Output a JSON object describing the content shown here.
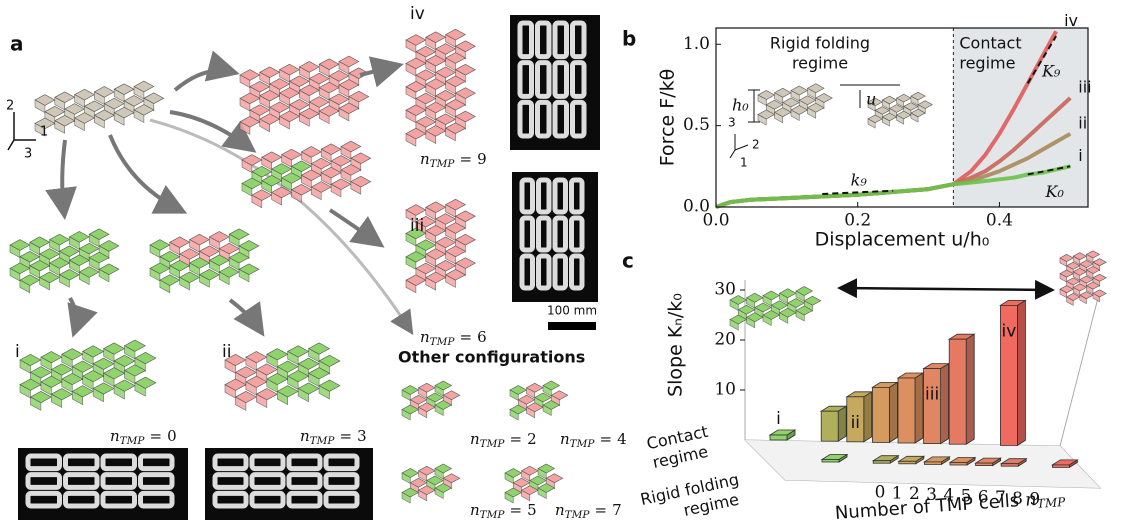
{
  "panel_a": {
    "label": "a",
    "axes": [
      "2",
      "1",
      "3"
    ],
    "n_tmp": {
      "symbol": "n",
      "subscript": "TMP",
      "relation": "="
    },
    "configurations": [
      {
        "roman": "i",
        "value": 0
      },
      {
        "roman": "ii",
        "value": 3
      },
      {
        "roman": "iii",
        "value": 6
      },
      {
        "roman": "iv",
        "value": 9
      }
    ],
    "other_configurations": {
      "title": "Other configurations",
      "values": [
        2,
        4,
        5,
        7
      ]
    },
    "scale_bar": "100 mm"
  },
  "chart_data": [
    {
      "type": "line",
      "panel_label": "b",
      "xlabel": "Displacement u/h₀",
      "ylabel": "Force F/kθ",
      "xlim": [
        0,
        0.525
      ],
      "ylim": [
        0,
        1.1
      ],
      "xticks": [
        {
          "value": 0,
          "label": "0.0"
        },
        0.2,
        0.4
      ],
      "yticks": [
        {
          "value": 0,
          "label": "0.0"
        },
        0.5,
        {
          "value": 1,
          "label": "1.0"
        }
      ],
      "x": [
        0,
        0.02,
        0.05,
        0.1,
        0.2,
        0.3,
        0.335,
        0.36,
        0.38,
        0.4,
        0.42,
        0.44,
        0.46,
        0.48,
        0.5
      ],
      "series": [
        {
          "name": "iv",
          "color": "#e05a5a",
          "values": [
            0,
            0.03,
            0.045,
            0.055,
            0.075,
            0.11,
            0.14,
            0.22,
            0.32,
            0.45,
            0.6,
            0.76,
            0.92,
            1.08,
            null
          ]
        },
        {
          "name": "iii",
          "color": "#c9645a",
          "values": [
            0,
            0.03,
            0.045,
            0.055,
            0.075,
            0.11,
            0.14,
            0.18,
            0.22,
            0.28,
            0.35,
            0.43,
            0.51,
            0.59,
            0.67
          ]
        },
        {
          "name": "ii",
          "color": "#a88a5a",
          "values": [
            0,
            0.03,
            0.045,
            0.055,
            0.075,
            0.11,
            0.14,
            0.16,
            0.19,
            0.22,
            0.26,
            0.3,
            0.35,
            0.4,
            0.45
          ]
        },
        {
          "name": "i",
          "color": "#6cc24a",
          "values": [
            0,
            0.03,
            0.045,
            0.055,
            0.075,
            0.11,
            0.14,
            0.15,
            0.16,
            0.17,
            0.18,
            0.2,
            0.21,
            0.23,
            0.25
          ]
        }
      ],
      "regions": [
        {
          "lines": [
            "Rigid folding",
            "regime"
          ],
          "range": [
            0,
            0.335
          ]
        },
        {
          "lines": [
            "Contact",
            "regime"
          ],
          "range": [
            0.335,
            0.525
          ],
          "shaded": true
        }
      ],
      "annotations": {
        "k9": "k₉",
        "K9": "K₉",
        "K0": "K₀",
        "h0": "h₀",
        "u": "u",
        "axes": [
          "3",
          "2",
          "1"
        ]
      }
    },
    {
      "type": "bar3d",
      "panel_label": "c",
      "ylabel": "Slope Kₙ/k₀",
      "xlabel": "Number of TMP cells",
      "categories": [
        0,
        1,
        2,
        3,
        4,
        5,
        6,
        7,
        8,
        9
      ],
      "ylim": [
        0,
        30
      ],
      "yticks": [
        10,
        20,
        30
      ],
      "colors": [
        "#8fd46a",
        "#a4b85e",
        "#b0b05c",
        "#c6a85e",
        "#d49a60",
        "#dc9060",
        "#e08662",
        "#e47a62",
        "#ea7062",
        "#f06a60"
      ],
      "series": [
        {
          "name": [
            "Contact",
            "regime"
          ],
          "values": [
            1,
            null,
            6,
            9,
            11,
            13,
            15,
            21,
            null,
            28
          ],
          "labels": [
            "i",
            null,
            null,
            "ii",
            null,
            null,
            "iii",
            null,
            null,
            "iv"
          ]
        },
        {
          "name": [
            "Rigid folding",
            "regime"
          ],
          "values": [
            0.5,
            null,
            0.5,
            0.5,
            0.5,
            0.5,
            0.5,
            0.5,
            null,
            0.5
          ]
        }
      ]
    }
  ]
}
